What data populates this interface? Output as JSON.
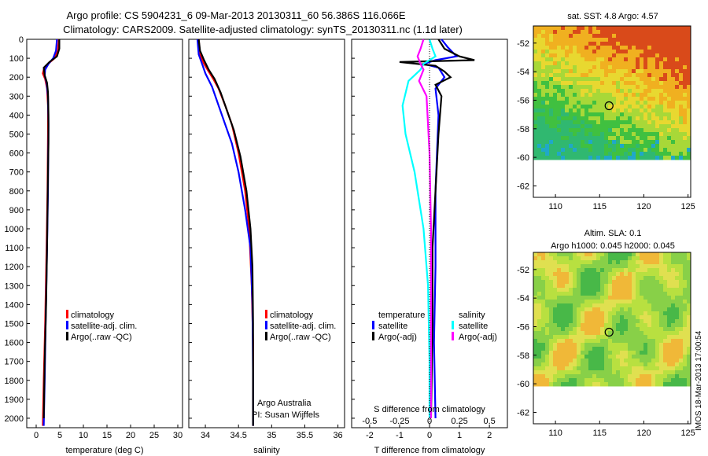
{
  "header": {
    "line1": "Argo profile: CS 5904231_6 09-Mar-2013 20130311_60 56.386S 116.066E",
    "line2": "Climatology: CARS2009. Satellite-adjusted climatology: synTS_20130311.nc (1.1d later)"
  },
  "colors": {
    "climatology": "#ff0000",
    "satellite": "#0000ff",
    "argo": "#000000",
    "salinity_satellite": "#00ffff",
    "salinity_argo": "#ff00ff"
  },
  "chart_data": [
    {
      "type": "line",
      "id": "temperature",
      "xlabel": "temperature (deg C)",
      "xticks": [
        0,
        5,
        10,
        15,
        20,
        25,
        30
      ],
      "xlim": [
        -2,
        31
      ],
      "ylim": [
        2050,
        0
      ],
      "yticks": [
        0,
        100,
        200,
        300,
        400,
        500,
        600,
        700,
        800,
        900,
        1000,
        1100,
        1200,
        1300,
        1400,
        1500,
        1600,
        1700,
        1800,
        1900,
        2000
      ],
      "legend": [
        "climatology",
        "satellite-adj. clim.",
        "Argo(..raw -QC)"
      ],
      "series": [
        {
          "name": "climatology",
          "color": "#ff0000",
          "points": [
            [
              4.8,
              0
            ],
            [
              4.6,
              60
            ],
            [
              3.9,
              100
            ],
            [
              2.5,
              130
            ],
            [
              1.6,
              160
            ],
            [
              1.4,
              180
            ],
            [
              1.9,
              210
            ],
            [
              2.3,
              260
            ],
            [
              2.5,
              350
            ],
            [
              2.5,
              500
            ],
            [
              2.4,
              800
            ],
            [
              2.2,
              1100
            ],
            [
              1.9,
              1500
            ],
            [
              1.6,
              1800
            ],
            [
              1.4,
              2040
            ]
          ]
        },
        {
          "name": "satellite-adj. clim.",
          "color": "#0000ff",
          "points": [
            [
              4.4,
              0
            ],
            [
              4.2,
              60
            ],
            [
              3.6,
              100
            ],
            [
              2.6,
              130
            ],
            [
              1.9,
              160
            ],
            [
              1.8,
              190
            ],
            [
              2.2,
              230
            ],
            [
              2.5,
              300
            ],
            [
              2.6,
              450
            ],
            [
              2.5,
              800
            ],
            [
              2.3,
              1100
            ],
            [
              2.0,
              1500
            ],
            [
              1.8,
              1800
            ],
            [
              1.6,
              2040
            ]
          ]
        },
        {
          "name": "Argo(..raw -QC)",
          "color": "#000000",
          "points": [
            [
              4.9,
              0
            ],
            [
              4.9,
              50
            ],
            [
              4.4,
              90
            ],
            [
              2.8,
              120
            ],
            [
              1.6,
              150
            ],
            [
              1.8,
              190
            ],
            [
              2.3,
              230
            ],
            [
              2.5,
              280
            ],
            [
              2.6,
              400
            ],
            [
              2.6,
              550
            ],
            [
              2.5,
              700
            ],
            [
              2.4,
              900
            ],
            [
              2.3,
              1100
            ],
            [
              2.1,
              1400
            ],
            [
              1.8,
              1700
            ],
            [
              1.6,
              2000
            ]
          ]
        }
      ]
    },
    {
      "type": "line",
      "id": "salinity",
      "xlabel": "salinity",
      "xticks": [
        34,
        34.5,
        35,
        35.5,
        36
      ],
      "xlim": [
        33.75,
        36.1
      ],
      "ylim": [
        2050,
        0
      ],
      "legend": [
        "climatology",
        "satellite-adj. clim.",
        "Argo(..raw -QC)"
      ],
      "annotation": [
        "Argo Australia",
        "PI: Susan Wijffels"
      ],
      "series": [
        {
          "name": "climatology",
          "color": "#ff0000",
          "points": [
            [
              33.9,
              0
            ],
            [
              33.92,
              80
            ],
            [
              33.98,
              130
            ],
            [
              34.05,
              170
            ],
            [
              34.12,
              210
            ],
            [
              34.2,
              260
            ],
            [
              34.3,
              350
            ],
            [
              34.4,
              450
            ],
            [
              34.5,
              600
            ],
            [
              34.6,
              800
            ],
            [
              34.66,
              1000
            ],
            [
              34.7,
              1300
            ],
            [
              34.72,
              1600
            ],
            [
              34.72,
              1800
            ],
            [
              34.72,
              2040
            ]
          ]
        },
        {
          "name": "satellite-adj. clim.",
          "color": "#0000ff",
          "points": [
            [
              33.88,
              0
            ],
            [
              33.9,
              80
            ],
            [
              33.95,
              130
            ],
            [
              34.0,
              180
            ],
            [
              34.1,
              250
            ],
            [
              34.2,
              350
            ],
            [
              34.3,
              450
            ],
            [
              34.4,
              550
            ],
            [
              34.5,
              700
            ],
            [
              34.6,
              900
            ],
            [
              34.68,
              1100
            ],
            [
              34.71,
              1400
            ],
            [
              34.72,
              1800
            ],
            [
              34.72,
              2040
            ]
          ]
        },
        {
          "name": "Argo(..raw -QC)",
          "color": "#000000",
          "points": [
            [
              33.9,
              0
            ],
            [
              33.92,
              60
            ],
            [
              33.98,
              110
            ],
            [
              34.05,
              160
            ],
            [
              34.14,
              210
            ],
            [
              34.23,
              280
            ],
            [
              34.33,
              380
            ],
            [
              34.43,
              480
            ],
            [
              34.53,
              620
            ],
            [
              34.62,
              800
            ],
            [
              34.68,
              1000
            ],
            [
              34.71,
              1200
            ],
            [
              34.72,
              1500
            ],
            [
              34.72,
              1800
            ],
            [
              34.72,
              2040
            ]
          ]
        }
      ]
    },
    {
      "type": "line",
      "id": "difference",
      "xlabel": "T difference from climatology",
      "toplabel": "S difference from climatology",
      "xticks": [
        -2,
        -1,
        0,
        1,
        2
      ],
      "s_ticks": [
        "-0.5",
        "-0.25",
        "0",
        "0.25",
        "0.5"
      ],
      "xlim": [
        -2.6,
        2.6
      ],
      "ylim": [
        2050,
        0
      ],
      "legend_left_title": "temperature",
      "legend_right_title": "salinity",
      "legend_left": [
        "satellite",
        "Argo(-adj)"
      ],
      "legend_right": [
        "satellite",
        "Argo(-adj)"
      ],
      "series": [
        {
          "name": "temperature satellite",
          "color": "#0000ff",
          "points": [
            [
              0.4,
              0
            ],
            [
              0.6,
              40
            ],
            [
              0.9,
              90
            ],
            [
              0.2,
              110
            ],
            [
              -0.2,
              130
            ],
            [
              0.3,
              150
            ],
            [
              0.5,
              200
            ],
            [
              0.2,
              260
            ],
            [
              0.3,
              400
            ],
            [
              0.2,
              800
            ],
            [
              0.2,
              1200
            ],
            [
              0.15,
              1600
            ],
            [
              0.2,
              2000
            ]
          ]
        },
        {
          "name": "temperature Argo(-adj)",
          "color": "#000000",
          "points": [
            [
              0.3,
              0
            ],
            [
              0.5,
              50
            ],
            [
              1.0,
              90
            ],
            [
              1.5,
              110
            ],
            [
              -1.0,
              120
            ],
            [
              0.2,
              140
            ],
            [
              0.5,
              170
            ],
            [
              0.7,
              200
            ],
            [
              0.2,
              240
            ],
            [
              0.4,
              300
            ],
            [
              0.3,
              500
            ],
            [
              0.2,
              800
            ],
            [
              0.1,
              1100
            ],
            [
              0.1,
              1500
            ],
            [
              0.05,
              2000
            ]
          ]
        },
        {
          "name": "salinity satellite",
          "color": "#00ffff",
          "points": [
            [
              0.0,
              0
            ],
            [
              0.1,
              50
            ],
            [
              0.2,
              90
            ],
            [
              -0.2,
              130
            ],
            [
              -0.3,
              160
            ],
            [
              -0.7,
              220
            ],
            [
              -0.9,
              350
            ],
            [
              -0.8,
              500
            ],
            [
              -0.5,
              700
            ],
            [
              -0.2,
              1000
            ],
            [
              -0.05,
              1300
            ],
            [
              0.0,
              1700
            ],
            [
              0.0,
              2000
            ]
          ]
        },
        {
          "name": "salinity Argo(-adj)",
          "color": "#ff00ff",
          "points": [
            [
              -0.2,
              0
            ],
            [
              -0.3,
              50
            ],
            [
              -0.4,
              90
            ],
            [
              -0.3,
              130
            ],
            [
              -0.2,
              160
            ],
            [
              -0.35,
              220
            ],
            [
              -0.1,
              300
            ],
            [
              0.0,
              600
            ],
            [
              0.05,
              1000
            ],
            [
              0.05,
              1500
            ],
            [
              0.05,
              2000
            ]
          ]
        }
      ]
    },
    {
      "type": "heatmap",
      "id": "sst_map",
      "title": "sat. SST: 4.8  Argo: 4.57",
      "xticks": [
        110,
        115,
        120,
        125
      ],
      "yticks": [
        -52,
        -54,
        -56,
        -58,
        -60,
        -62
      ],
      "xlim": [
        107.5,
        125.3
      ],
      "ylim": [
        -62.8,
        -50.8
      ],
      "marker": [
        116.066,
        -56.386
      ]
    },
    {
      "type": "heatmap",
      "id": "sla_map",
      "title": "Altim. SLA: 0.1",
      "subtitle": "Argo h1000: 0.045 h2000: 0.045",
      "xticks": [
        110,
        115,
        120,
        125
      ],
      "yticks": [
        -52,
        -54,
        -56,
        -58,
        -60,
        -62
      ],
      "xlim": [
        107.5,
        125.3
      ],
      "ylim": [
        -62.8,
        -50.8
      ],
      "marker": [
        116.066,
        -56.386
      ]
    }
  ],
  "footer": {
    "stamp": "IMOS 18-Mar-2013 17:00:54"
  }
}
